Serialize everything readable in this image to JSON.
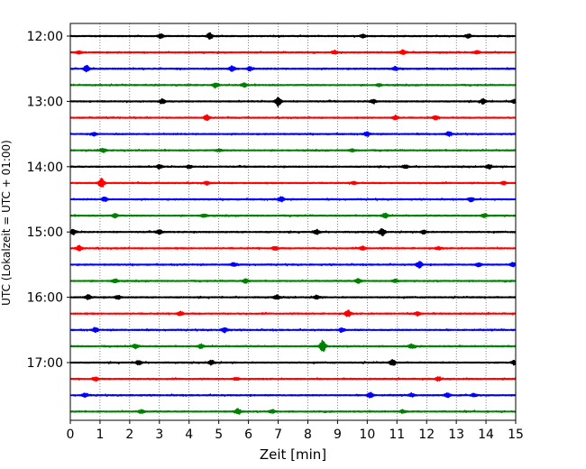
{
  "chart_data": {
    "type": "line",
    "title": "",
    "xlabel": "Zeit  [min]",
    "ylabel": "UTC (Lokalzeit = UTC + 01:00)",
    "xlim": [
      0,
      15
    ],
    "x_ticks": [
      0,
      1,
      2,
      3,
      4,
      5,
      6,
      7,
      8,
      9,
      10,
      11,
      12,
      13,
      14,
      15
    ],
    "x_tick_labels": [
      "0",
      "1",
      "2",
      "3",
      "4",
      "5",
      "6",
      "7",
      "8",
      "9",
      "10",
      "11",
      "12",
      "13",
      "14",
      "15"
    ],
    "grid": "vertical dotted lines at each minute",
    "trace_interval_minutes": 15,
    "y_tick_labels": [
      "12:00",
      "13:00",
      "14:00",
      "15:00",
      "16:00",
      "17:00"
    ],
    "color_cycle": [
      "#000000",
      "#ff0000",
      "#0000ff",
      "#008000"
    ],
    "series": [
      {
        "start": "12:00",
        "color": "#000000",
        "events": [
          [
            3.05,
            0.35
          ],
          [
            4.7,
            0.5
          ],
          [
            9.85,
            0.25
          ],
          [
            13.4,
            0.25
          ]
        ]
      },
      {
        "start": "12:15",
        "color": "#ff0000",
        "events": [
          [
            0.3,
            0.2
          ],
          [
            8.9,
            0.3
          ],
          [
            11.2,
            0.4
          ],
          [
            13.7,
            0.25
          ]
        ]
      },
      {
        "start": "12:30",
        "color": "#0000ff",
        "events": [
          [
            0.55,
            0.5
          ],
          [
            5.45,
            0.5
          ],
          [
            6.05,
            0.35
          ],
          [
            10.95,
            0.3
          ]
        ]
      },
      {
        "start": "12:45",
        "color": "#008000",
        "events": [
          [
            4.9,
            0.4
          ],
          [
            5.85,
            0.3
          ],
          [
            10.4,
            0.2
          ]
        ]
      },
      {
        "start": "13:00",
        "color": "#000000",
        "events": [
          [
            3.1,
            0.35
          ],
          [
            7.0,
            0.8
          ],
          [
            10.2,
            0.3
          ],
          [
            13.9,
            0.4
          ],
          [
            14.95,
            0.3
          ]
        ]
      },
      {
        "start": "13:15",
        "color": "#ff0000",
        "events": [
          [
            4.6,
            0.45
          ],
          [
            10.95,
            0.35
          ],
          [
            12.3,
            0.3
          ]
        ]
      },
      {
        "start": "13:30",
        "color": "#0000ff",
        "events": [
          [
            0.8,
            0.25
          ],
          [
            10.0,
            0.35
          ],
          [
            12.75,
            0.35
          ]
        ]
      },
      {
        "start": "13:45",
        "color": "#008000",
        "events": [
          [
            1.1,
            0.3
          ],
          [
            5.0,
            0.2
          ],
          [
            9.5,
            0.2
          ]
        ]
      },
      {
        "start": "14:00",
        "color": "#000000",
        "events": [
          [
            3.0,
            0.3
          ],
          [
            4.0,
            0.25
          ],
          [
            11.3,
            0.3
          ],
          [
            14.1,
            0.3
          ]
        ]
      },
      {
        "start": "14:15",
        "color": "#ff0000",
        "events": [
          [
            1.05,
            0.8
          ],
          [
            4.6,
            0.25
          ],
          [
            9.55,
            0.25
          ],
          [
            14.6,
            0.25
          ]
        ]
      },
      {
        "start": "14:30",
        "color": "#0000ff",
        "events": [
          [
            1.15,
            0.35
          ],
          [
            7.1,
            0.45
          ],
          [
            13.5,
            0.35
          ]
        ]
      },
      {
        "start": "14:45",
        "color": "#008000",
        "events": [
          [
            1.5,
            0.35
          ],
          [
            4.5,
            0.3
          ],
          [
            10.6,
            0.4
          ],
          [
            13.95,
            0.3
          ]
        ]
      },
      {
        "start": "15:00",
        "color": "#000000",
        "events": [
          [
            0.1,
            0.4
          ],
          [
            3.0,
            0.35
          ],
          [
            8.3,
            0.45
          ],
          [
            10.5,
            0.6
          ],
          [
            11.9,
            0.3
          ]
        ]
      },
      {
        "start": "15:15",
        "color": "#ff0000",
        "events": [
          [
            0.3,
            0.4
          ],
          [
            6.9,
            0.3
          ],
          [
            9.85,
            0.3
          ],
          [
            12.4,
            0.2
          ]
        ]
      },
      {
        "start": "15:30",
        "color": "#0000ff",
        "events": [
          [
            5.5,
            0.3
          ],
          [
            11.75,
            0.55
          ],
          [
            13.75,
            0.3
          ],
          [
            14.9,
            0.35
          ]
        ]
      },
      {
        "start": "15:45",
        "color": "#008000",
        "events": [
          [
            1.5,
            0.35
          ],
          [
            5.9,
            0.3
          ],
          [
            9.7,
            0.35
          ],
          [
            10.95,
            0.25
          ]
        ]
      },
      {
        "start": "16:00",
        "color": "#000000",
        "events": [
          [
            0.6,
            0.4
          ],
          [
            1.6,
            0.3
          ],
          [
            6.95,
            0.35
          ],
          [
            8.3,
            0.3
          ]
        ]
      },
      {
        "start": "16:15",
        "color": "#ff0000",
        "events": [
          [
            3.7,
            0.35
          ],
          [
            9.35,
            0.55
          ],
          [
            11.7,
            0.3
          ]
        ]
      },
      {
        "start": "16:30",
        "color": "#0000ff",
        "events": [
          [
            0.85,
            0.35
          ],
          [
            5.2,
            0.4
          ],
          [
            9.15,
            0.3
          ]
        ]
      },
      {
        "start": "16:45",
        "color": "#008000",
        "events": [
          [
            2.2,
            0.35
          ],
          [
            4.4,
            0.35
          ],
          [
            8.5,
            0.95
          ],
          [
            11.5,
            0.35
          ]
        ]
      },
      {
        "start": "17:00",
        "color": "#000000",
        "events": [
          [
            2.3,
            0.4
          ],
          [
            4.75,
            0.4
          ],
          [
            10.85,
            0.5
          ],
          [
            14.95,
            0.3
          ]
        ]
      },
      {
        "start": "17:15",
        "color": "#ff0000",
        "events": [
          [
            0.85,
            0.3
          ],
          [
            5.6,
            0.25
          ],
          [
            12.4,
            0.3
          ]
        ]
      },
      {
        "start": "17:30",
        "color": "#0000ff",
        "events": [
          [
            0.5,
            0.3
          ],
          [
            10.1,
            0.45
          ],
          [
            11.5,
            0.25
          ],
          [
            12.7,
            0.4
          ],
          [
            13.6,
            0.25
          ]
        ]
      },
      {
        "start": "17:45",
        "color": "#008000",
        "events": [
          [
            2.4,
            0.3
          ],
          [
            5.65,
            0.45
          ],
          [
            6.8,
            0.3
          ],
          [
            11.2,
            0.25
          ]
        ]
      }
    ]
  }
}
